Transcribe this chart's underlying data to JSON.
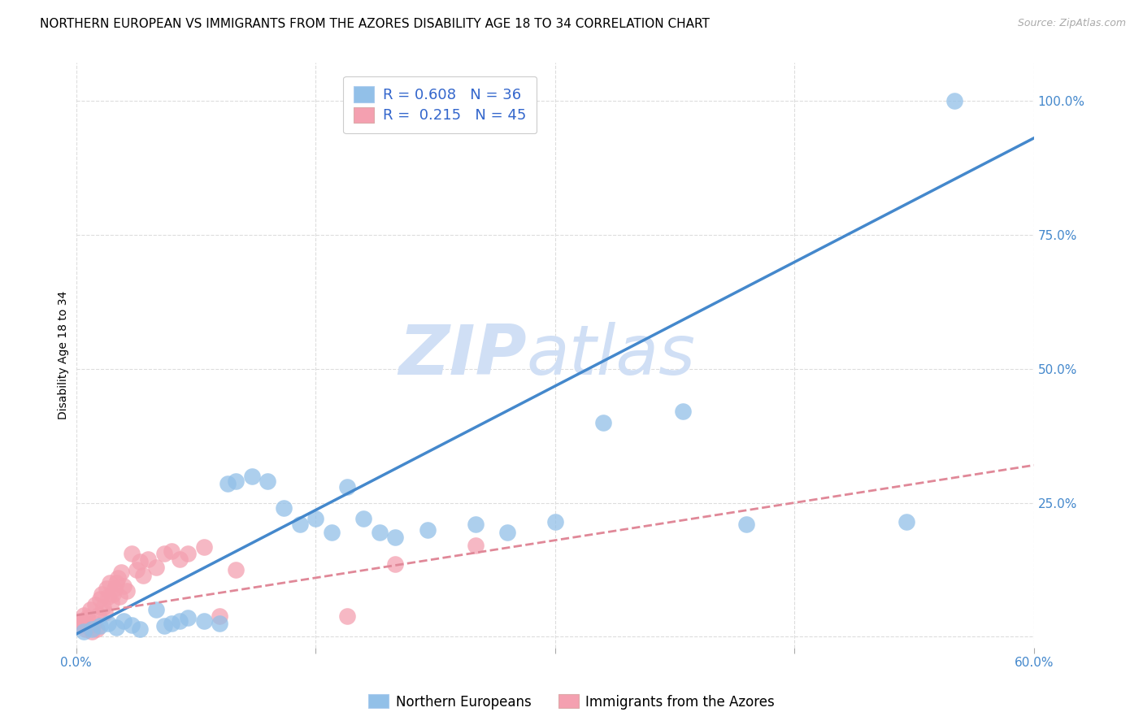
{
  "title": "NORTHERN EUROPEAN VS IMMIGRANTS FROM THE AZORES DISABILITY AGE 18 TO 34 CORRELATION CHART",
  "source": "Source: ZipAtlas.com",
  "ylabel": "Disability Age 18 to 34",
  "xlim": [
    0.0,
    0.6
  ],
  "ylim": [
    -0.02,
    1.07
  ],
  "xticks": [
    0.0,
    0.15,
    0.3,
    0.45,
    0.6
  ],
  "xtick_labels": [
    "0.0%",
    "",
    "",
    "",
    "60.0%"
  ],
  "ytick_labels_right": [
    "100.0%",
    "75.0%",
    "50.0%",
    "25.0%",
    ""
  ],
  "yticks_right": [
    1.0,
    0.75,
    0.5,
    0.25,
    0.0
  ],
  "blue_R": 0.608,
  "blue_N": 36,
  "pink_R": 0.215,
  "pink_N": 45,
  "blue_color": "#92c0e8",
  "pink_color": "#f4a0b0",
  "blue_line_color": "#4488cc",
  "pink_line_color": "#e08898",
  "watermark_zip": "ZIP",
  "watermark_atlas": "atlas",
  "watermark_color": "#d0dff5",
  "legend_label_blue": "Northern Europeans",
  "legend_label_pink": "Immigrants from the Azores",
  "blue_scatter_x": [
    0.005,
    0.01,
    0.015,
    0.02,
    0.025,
    0.03,
    0.035,
    0.04,
    0.05,
    0.055,
    0.06,
    0.065,
    0.07,
    0.08,
    0.09,
    0.095,
    0.1,
    0.11,
    0.12,
    0.13,
    0.14,
    0.15,
    0.16,
    0.17,
    0.18,
    0.19,
    0.2,
    0.22,
    0.25,
    0.27,
    0.3,
    0.33,
    0.38,
    0.42,
    0.52,
    0.55
  ],
  "blue_scatter_y": [
    0.01,
    0.015,
    0.02,
    0.025,
    0.018,
    0.03,
    0.022,
    0.015,
    0.05,
    0.02,
    0.025,
    0.03,
    0.035,
    0.03,
    0.025,
    0.285,
    0.29,
    0.3,
    0.29,
    0.24,
    0.21,
    0.22,
    0.195,
    0.28,
    0.22,
    0.195,
    0.185,
    0.2,
    0.21,
    0.195,
    0.215,
    0.4,
    0.42,
    0.21,
    0.215,
    1.0
  ],
  "pink_scatter_x": [
    0.002,
    0.003,
    0.004,
    0.005,
    0.006,
    0.007,
    0.008,
    0.009,
    0.01,
    0.011,
    0.012,
    0.013,
    0.014,
    0.015,
    0.016,
    0.017,
    0.018,
    0.019,
    0.02,
    0.021,
    0.022,
    0.023,
    0.024,
    0.025,
    0.026,
    0.027,
    0.028,
    0.03,
    0.032,
    0.035,
    0.038,
    0.04,
    0.042,
    0.045,
    0.05,
    0.055,
    0.06,
    0.065,
    0.07,
    0.08,
    0.09,
    0.1,
    0.17,
    0.2,
    0.25
  ],
  "pink_scatter_y": [
    0.02,
    0.03,
    0.025,
    0.04,
    0.015,
    0.035,
    0.02,
    0.05,
    0.01,
    0.025,
    0.06,
    0.015,
    0.04,
    0.07,
    0.08,
    0.055,
    0.045,
    0.09,
    0.075,
    0.1,
    0.065,
    0.08,
    0.09,
    0.1,
    0.11,
    0.075,
    0.12,
    0.095,
    0.085,
    0.155,
    0.125,
    0.14,
    0.115,
    0.145,
    0.13,
    0.155,
    0.16,
    0.145,
    0.155,
    0.168,
    0.038,
    0.125,
    0.038,
    0.135,
    0.17
  ],
  "blue_line_x0": 0.0,
  "blue_line_y0": 0.005,
  "blue_line_x1": 0.6,
  "blue_line_y1": 0.93,
  "pink_line_x0": 0.0,
  "pink_line_y0": 0.04,
  "pink_line_x1": 0.6,
  "pink_line_y1": 0.32,
  "grid_color": "#dddddd",
  "background_color": "#ffffff",
  "title_fontsize": 11,
  "axis_label_fontsize": 10,
  "tick_fontsize": 11,
  "legend_fontsize": 13
}
